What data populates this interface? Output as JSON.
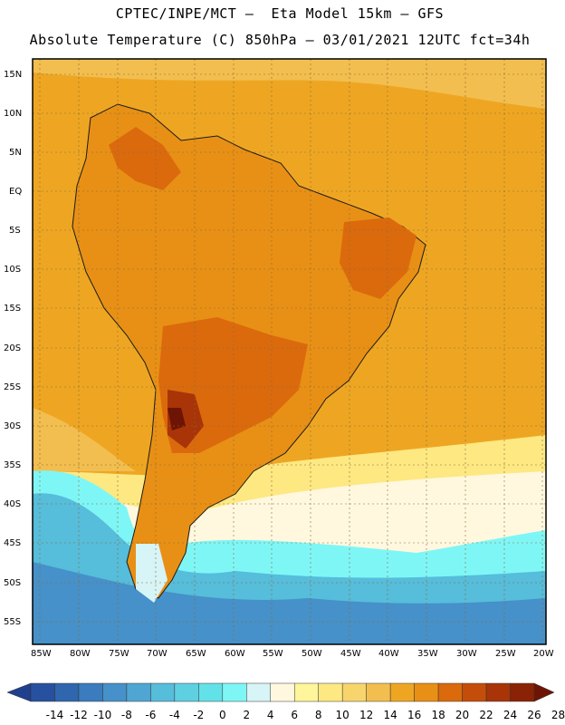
{
  "header": {
    "line1": "CPTEC/INPE/MCT –  Eta Model 15km – GFS",
    "line2": "Absolute Temperature (C) 850hPa – 03/01/2021 12UTC fct=34h"
  },
  "map": {
    "lat_labels": [
      "15N",
      "10N",
      "5N",
      "EQ",
      "5S",
      "10S",
      "15S",
      "20S",
      "25S",
      "30S",
      "35S",
      "40S",
      "45S",
      "50S",
      "55S"
    ],
    "lon_labels": [
      "85W",
      "80W",
      "75W",
      "70W",
      "65W",
      "60W",
      "55W",
      "50W",
      "45W",
      "40W",
      "35W",
      "30W",
      "25W",
      "20W"
    ],
    "lat_range": [
      15,
      -55
    ],
    "lon_range": [
      -85,
      -20
    ]
  },
  "colorbar": {
    "labels": [
      "-14",
      "-12",
      "-10",
      "-8",
      "-6",
      "-4",
      "-2",
      "0",
      "2",
      "4",
      "6",
      "8",
      "10",
      "12",
      "14",
      "16",
      "18",
      "20",
      "22",
      "24",
      "26",
      "28"
    ],
    "colors": [
      "#1f3f8f",
      "#27519e",
      "#2f66ae",
      "#3a7cbd",
      "#4691c9",
      "#4fa6d3",
      "#56bddb",
      "#5ed0e2",
      "#62e2e8",
      "#7ff6f6",
      "#d7f4f6",
      "#fff8df",
      "#fff59a",
      "#fde882",
      "#f8d56c",
      "#f2be4f",
      "#eea622",
      "#e89015",
      "#db6a0d",
      "#c54d0a",
      "#a83407",
      "#8a2205",
      "#6d1404"
    ]
  }
}
